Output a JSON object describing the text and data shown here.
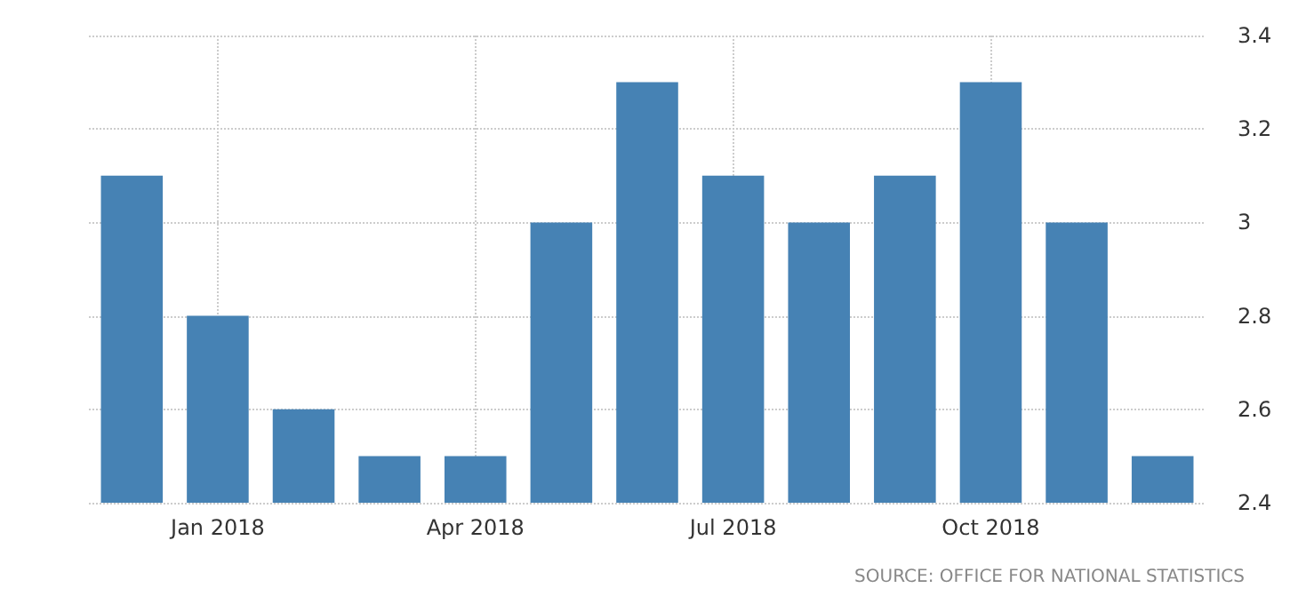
{
  "chart_data": {
    "type": "bar",
    "categories": [
      null,
      "Jan 2018",
      null,
      null,
      "Apr 2018",
      null,
      null,
      "Jul 2018",
      null,
      null,
      "Oct 2018",
      null,
      null
    ],
    "values": [
      3.1,
      2.8,
      2.6,
      2.5,
      2.5,
      3.0,
      3.3,
      3.1,
      3.0,
      3.1,
      3.3,
      3.0,
      2.5
    ],
    "color": "#4682b4",
    "ylim": [
      2.4,
      3.4
    ],
    "yticks": [
      2.4,
      2.6,
      2.8,
      {
        "value": 3,
        "label": "3"
      },
      3.2,
      3.4
    ],
    "grid": true,
    "annotations": [
      "SOURCE: OFFICE FOR NATIONAL STATISTICS"
    ]
  }
}
